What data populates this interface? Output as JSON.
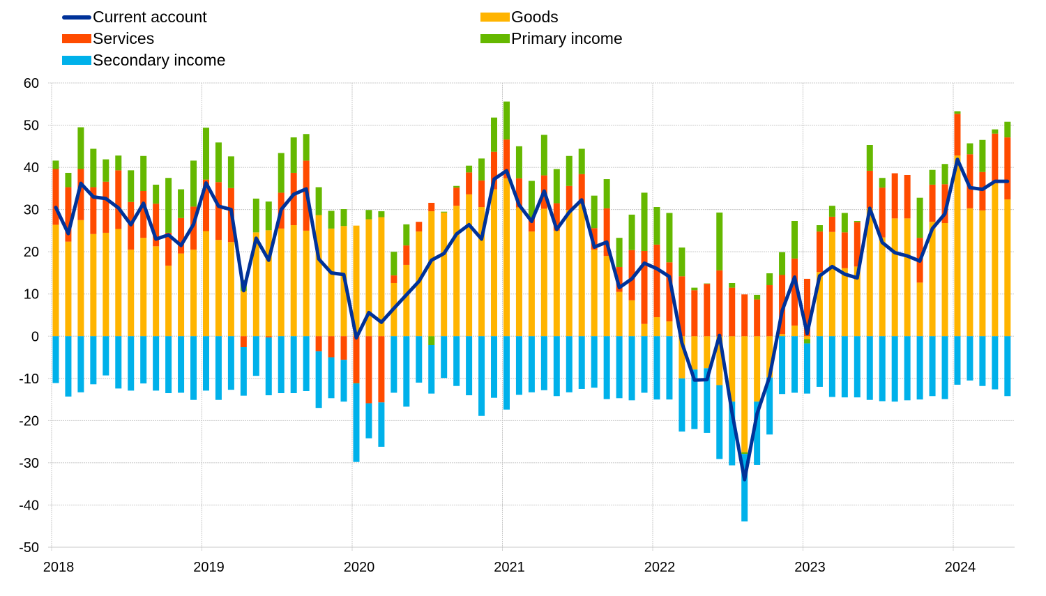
{
  "chart_data": {
    "type": "bar",
    "stacked": true,
    "title": "",
    "xlabel": "",
    "ylabel": "",
    "ylim": [
      -50,
      60
    ],
    "yticks": [
      -50,
      -40,
      -30,
      -20,
      -10,
      0,
      10,
      20,
      30,
      40,
      50,
      60
    ],
    "grid": true,
    "legend_position": "top-left",
    "x_tick_labels": [
      "2018",
      "2019",
      "2020",
      "2021",
      "2022",
      "2023",
      "2024"
    ],
    "start": "2018-01",
    "frequency": "monthly",
    "series": [
      {
        "name": "Goods",
        "kind": "bar",
        "color": "#FFB400",
        "values": [
          26.4,
          22.4,
          27.5,
          24.2,
          24.5,
          25.4,
          20.5,
          23.3,
          21.3,
          16.7,
          19.6,
          20.5,
          24.9,
          22.8,
          22.3,
          10.7,
          24.6,
          25.1,
          25.5,
          26.3,
          25.0,
          28.7,
          25.5,
          26.1,
          26.2,
          27.7,
          28.2,
          12.6,
          16.9,
          24.8,
          29.6,
          29.3,
          30.9,
          33.6,
          30.6,
          34.8,
          37.4,
          30.5,
          24.8,
          30.2,
          25.0,
          29.9,
          31.3,
          20.5,
          19.0,
          10.5,
          8.5,
          2.9,
          4.5,
          3.5,
          -10.0,
          -7.9,
          -7.6,
          -11.6,
          -15.5,
          -27.5,
          -15.5,
          -9.8,
          0.5,
          2.5,
          -0.7,
          15.2,
          24.7,
          16.1,
          16.5,
          30.3,
          23.4,
          27.9,
          27.9,
          12.7,
          27.1,
          26.8,
          42.8,
          30.3,
          29.8,
          36.2,
          32.4
        ],
        "units": "EUR billions"
      },
      {
        "name": "Services",
        "kind": "bar",
        "color": "#FF4B00",
        "values": [
          13.2,
          12.9,
          12.1,
          11.1,
          12.1,
          13.9,
          11.3,
          11.1,
          10.1,
          7.8,
          8.4,
          10.2,
          12.2,
          13.7,
          12.8,
          -2.6,
          0.0,
          -0.3,
          8.5,
          12.4,
          16.6,
          -3.6,
          -5.0,
          -5.6,
          -11.1,
          -15.9,
          -15.7,
          1.8,
          4.6,
          2.3,
          2.0,
          0.0,
          4.3,
          5.2,
          6.3,
          8.9,
          9.2,
          6.9,
          3.4,
          7.9,
          6.5,
          5.7,
          7.1,
          5.1,
          11.3,
          5.9,
          11.9,
          17.3,
          17.2,
          14.0,
          14.2,
          10.9,
          12.4,
          15.6,
          11.5,
          9.9,
          8.7,
          12.1,
          14.0,
          15.9,
          13.6,
          9.6,
          3.6,
          8.5,
          10.5,
          8.9,
          11.8,
          10.7,
          10.3,
          10.6,
          8.8,
          9.2,
          9.9,
          12.8,
          9.1,
          11.8,
          14.7
        ],
        "units": "EUR billions"
      },
      {
        "name": "Primary income",
        "kind": "bar",
        "color": "#65B800",
        "values": [
          2.0,
          3.4,
          9.9,
          9.1,
          5.3,
          3.5,
          7.5,
          8.3,
          4.5,
          13.0,
          6.8,
          10.9,
          12.3,
          9.4,
          7.5,
          2.6,
          8.0,
          6.8,
          9.4,
          8.4,
          6.3,
          6.6,
          4.2,
          4.0,
          -0.1,
          2.2,
          1.4,
          5.6,
          5.0,
          0.0,
          -2.1,
          0.2,
          0.4,
          1.6,
          5.2,
          8.1,
          9.0,
          7.6,
          8.6,
          9.6,
          8.1,
          7.1,
          6.0,
          7.7,
          6.9,
          6.9,
          8.4,
          13.8,
          8.9,
          11.7,
          6.8,
          0.6,
          0.1,
          13.7,
          1.1,
          -0.4,
          1.1,
          2.8,
          5.4,
          8.9,
          -1.0,
          1.5,
          2.6,
          4.6,
          0.3,
          6.1,
          2.3,
          0.0,
          0.0,
          9.5,
          3.5,
          4.8,
          0.6,
          2.6,
          7.6,
          1.0,
          3.7
        ],
        "units": "EUR billions"
      },
      {
        "name": "Secondary income",
        "kind": "bar",
        "color": "#00B1EA",
        "values": [
          -11.1,
          -14.3,
          -13.3,
          -11.4,
          -9.3,
          -12.4,
          -12.9,
          -11.2,
          -12.9,
          -13.5,
          -13.4,
          -15.1,
          -12.9,
          -15.1,
          -12.7,
          -11.5,
          -9.4,
          -13.7,
          -13.5,
          -13.5,
          -13.0,
          -13.4,
          -9.7,
          -9.9,
          -18.6,
          -8.3,
          -10.5,
          -13.4,
          -16.7,
          -11.0,
          -11.5,
          -9.9,
          -11.8,
          -14.0,
          -18.9,
          -14.6,
          -17.4,
          -13.9,
          -13.3,
          -12.8,
          -14.2,
          -13.3,
          -12.5,
          -12.2,
          -14.9,
          -14.7,
          -15.2,
          -13.4,
          -15.0,
          -15.0,
          -12.6,
          -14.1,
          -15.3,
          -17.5,
          -15.1,
          -16.0,
          -15.0,
          -13.5,
          -13.7,
          -13.4,
          -11.9,
          -12.0,
          -14.4,
          -14.5,
          -14.5,
          -15.1,
          -15.4,
          -15.5,
          -15.2,
          -15.0,
          -14.2,
          -14.9,
          -11.5,
          -10.5,
          -11.8,
          -12.6,
          -14.2
        ],
        "units": "EUR billions"
      },
      {
        "name": "Current account",
        "kind": "line",
        "color": "#003299",
        "values": [
          30.5,
          24.3,
          36.2,
          33.0,
          32.6,
          30.4,
          26.4,
          31.5,
          23.0,
          24.0,
          21.5,
          26.5,
          36.3,
          30.8,
          30.0,
          10.8,
          23.2,
          18.0,
          30.0,
          33.6,
          34.9,
          18.3,
          15.0,
          14.6,
          -0.4,
          5.6,
          3.3,
          6.6,
          9.8,
          13.0,
          18.0,
          19.6,
          24.2,
          26.4,
          23.0,
          37.2,
          39.2,
          31.1,
          27.2,
          34.4,
          25.3,
          29.4,
          32.3,
          21.1,
          22.3,
          11.5,
          13.6,
          17.3,
          16.0,
          14.1,
          -1.6,
          -10.4,
          -10.3,
          0.2,
          -18.0,
          -34.0,
          -18.4,
          -9.6,
          6.0,
          14.0,
          0.6,
          14.3,
          16.5,
          14.7,
          13.8,
          30.3,
          22.2,
          19.8,
          19.0,
          17.8,
          25.5,
          29.0,
          41.9,
          35.2,
          34.8,
          36.7,
          36.7
        ],
        "units": "EUR billions"
      }
    ]
  }
}
